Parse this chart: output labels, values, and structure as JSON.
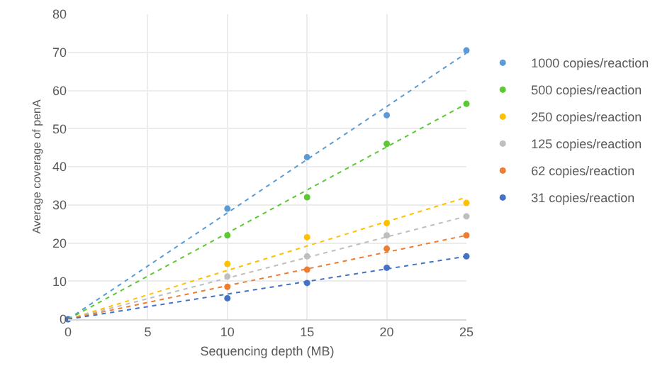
{
  "chart_data": {
    "type": "scatter",
    "xlabel": "Sequencing depth (MB)",
    "ylabel": "Average coverage of penA",
    "x": [
      0,
      10,
      15,
      20,
      25
    ],
    "xlim": [
      0,
      25
    ],
    "xticks": [
      0,
      5,
      10,
      15,
      20,
      25
    ],
    "ylim": [
      0,
      80
    ],
    "yticks": [
      0,
      10,
      20,
      30,
      40,
      50,
      60,
      70,
      80
    ],
    "grid": true,
    "legend": "right",
    "marker": "circle",
    "series": [
      {
        "name": "1000 copies/reaction",
        "color": "#5b9bd5",
        "values": [
          null,
          29,
          42.5,
          53.5,
          70.5
        ]
      },
      {
        "name": "500 copies/reaction",
        "color": "#5cc832",
        "values": [
          null,
          22,
          32,
          46,
          56.5
        ]
      },
      {
        "name": "250 copies/reaction",
        "color": "#ffc000",
        "values": [
          null,
          14.5,
          21.5,
          25.2,
          30.5
        ]
      },
      {
        "name": "125 copies/reaction",
        "color": "#bfbfbf",
        "values": [
          null,
          11.2,
          16.5,
          22,
          27
        ]
      },
      {
        "name": "62 copies/reaction",
        "color": "#ed7d31",
        "values": [
          null,
          8.5,
          13,
          18.5,
          22
        ]
      },
      {
        "name": "31 copies/reaction",
        "color": "#4472c4",
        "values": [
          0,
          5.5,
          9.5,
          13.5,
          16.5
        ]
      },
      {
        "type": "line",
        "line_style": "dotted",
        "marker": "none",
        "color": "#5b9bd5",
        "values": [
          0,
          27.9,
          41.9,
          55.8,
          69.8
        ]
      },
      {
        "type": "line",
        "line_style": "dotted",
        "marker": "none",
        "color": "#5cc832",
        "values": [
          0,
          22.6,
          33.9,
          45.2,
          56.5
        ]
      },
      {
        "type": "line",
        "line_style": "dotted",
        "marker": "none",
        "color": "#ffc000",
        "values": [
          0,
          12.8,
          19.2,
          25.6,
          32
        ]
      },
      {
        "type": "line",
        "line_style": "dotted",
        "marker": "none",
        "color": "#bfbfbf",
        "values": [
          0,
          10.8,
          16.2,
          21.6,
          27
        ]
      },
      {
        "type": "line",
        "line_style": "dotted",
        "marker": "none",
        "color": "#ed7d31",
        "values": [
          0,
          8.8,
          13.2,
          17.6,
          22
        ]
      },
      {
        "type": "line",
        "line_style": "dotted",
        "marker": "none",
        "color": "#4472c4",
        "values": [
          0,
          6.6,
          9.9,
          13.2,
          16.5
        ]
      }
    ]
  }
}
